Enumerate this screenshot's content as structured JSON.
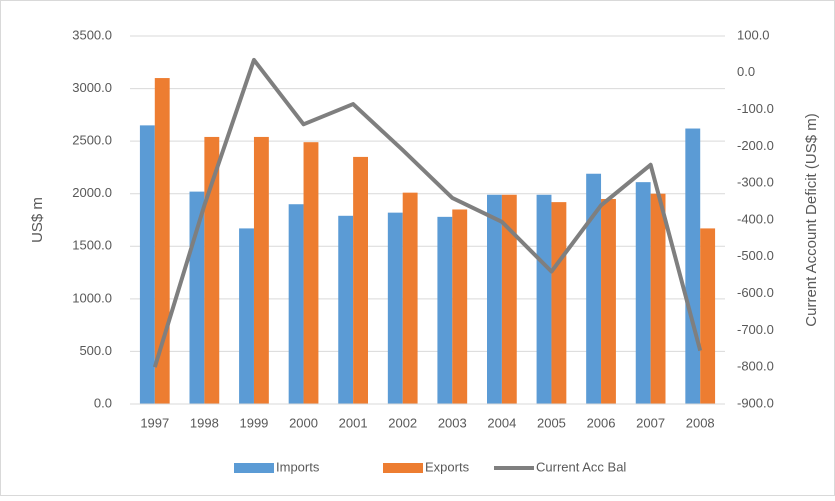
{
  "chart_data": {
    "type": "bar",
    "categories": [
      "1997",
      "1998",
      "1999",
      "2000",
      "2001",
      "2002",
      "2003",
      "2004",
      "2005",
      "2006",
      "2007",
      "2008"
    ],
    "series": [
      {
        "name": "Imports",
        "color": "#5b9bd5",
        "values": [
          2650,
          2020,
          1670,
          1900,
          1790,
          1820,
          1780,
          1990,
          1990,
          2190,
          2110,
          2620
        ]
      },
      {
        "name": "Exports",
        "color": "#ed7d31",
        "values": [
          3100,
          2540,
          2540,
          2490,
          2350,
          2010,
          1850,
          1990,
          1920,
          1950,
          2000,
          1670
        ]
      },
      {
        "name": "Current Acc Bal",
        "color": "#7f7f7f",
        "type": "line",
        "axis": "y2",
        "values": [
          -800,
          -360,
          35,
          -140,
          -85,
          -210,
          -340,
          -405,
          -540,
          -360,
          -250,
          -755
        ]
      }
    ],
    "ylabel": "US$ m",
    "y2label": "Current Account Deficit (US$ m)",
    "ylim": [
      0,
      3500
    ],
    "yticks": [
      {
        "value": 0,
        "label": "0.0"
      },
      {
        "value": 500,
        "label": "500.0"
      },
      {
        "value": 1000,
        "label": "1000.0"
      },
      {
        "value": 1500,
        "label": "1500.0"
      },
      {
        "value": 2000,
        "label": "2000.0"
      },
      {
        "value": 2500,
        "label": "2500.0"
      },
      {
        "value": 3000,
        "label": "3000.0"
      },
      {
        "value": 3500,
        "label": "3500.0"
      }
    ],
    "y2lim": [
      -900,
      100
    ],
    "y2ticks": [
      {
        "value": -900,
        "label": "-900.0"
      },
      {
        "value": -800,
        "label": "-800.0"
      },
      {
        "value": -700,
        "label": "-700.0"
      },
      {
        "value": -600,
        "label": "-600.0"
      },
      {
        "value": -500,
        "label": "-500.0"
      },
      {
        "value": -400,
        "label": "-400.0"
      },
      {
        "value": -300,
        "label": "-300.0"
      },
      {
        "value": -200,
        "label": "-200.0"
      },
      {
        "value": -100,
        "label": "-100.0"
      },
      {
        "value": 0,
        "label": "0.0"
      },
      {
        "value": 100,
        "label": "100.0"
      }
    ],
    "grid": true,
    "legend": "bottom"
  }
}
